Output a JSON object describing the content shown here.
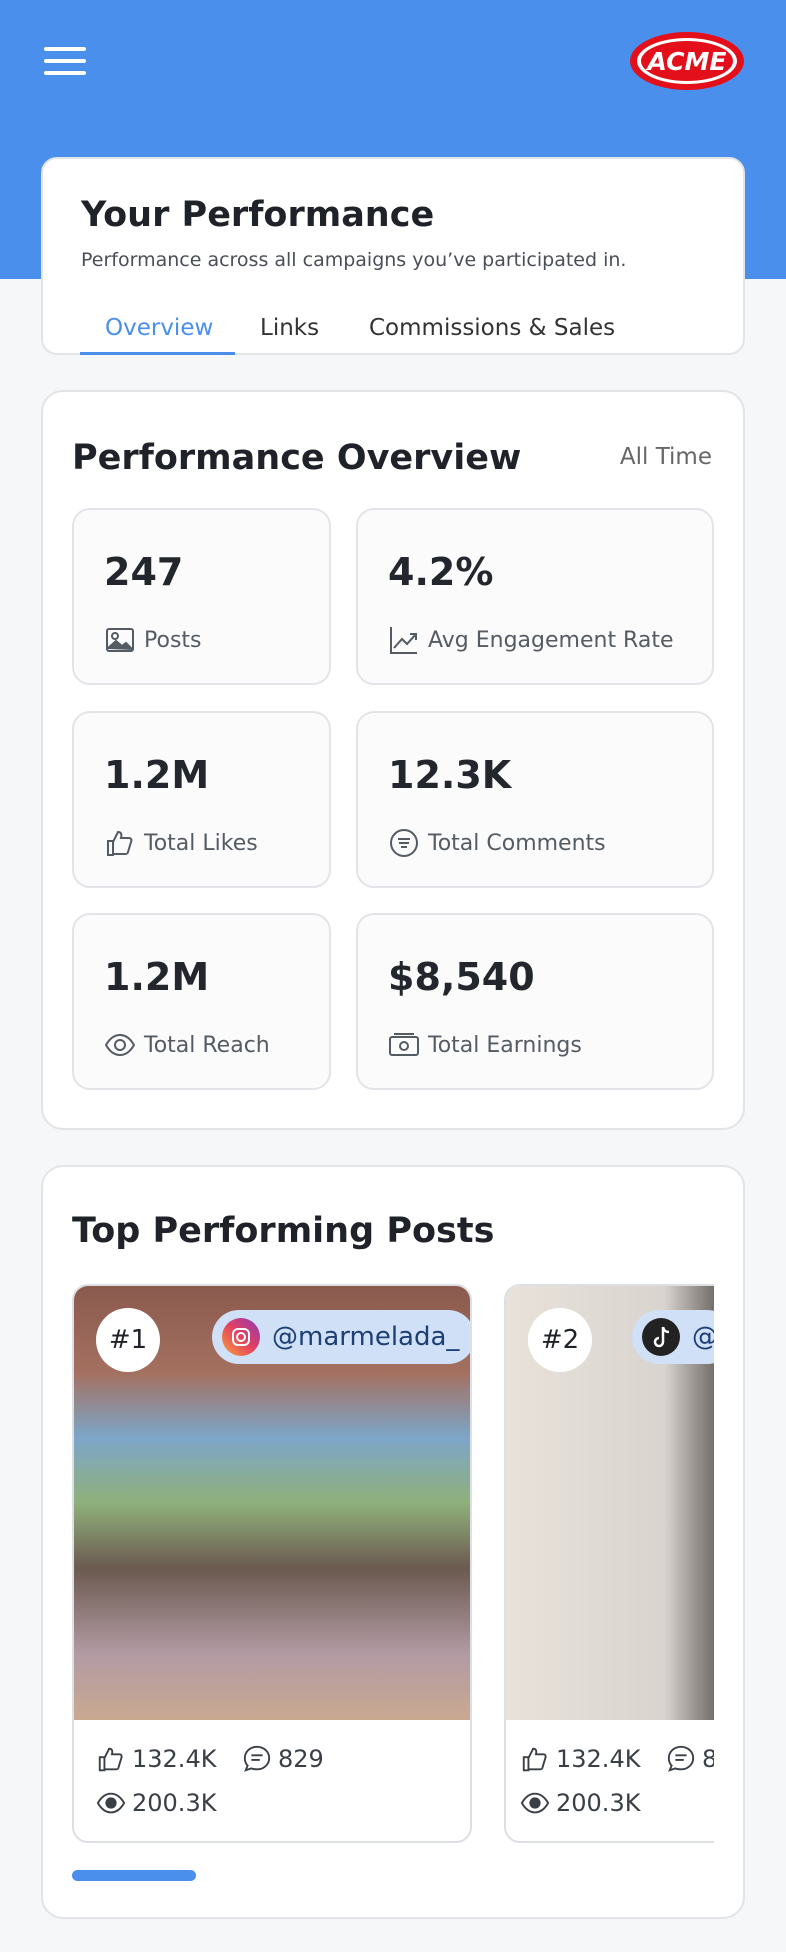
{
  "header": {
    "logo": "ACME"
  },
  "intro": {
    "title": "Your Performance",
    "subtitle": "Performance across all campaigns you’ve participated in.",
    "tabs": [
      "Overview",
      "Links",
      "Commissions & Sales"
    ]
  },
  "performance": {
    "title": "Performance Overview",
    "period": "All Time",
    "stats": [
      {
        "value": "247",
        "label": "Posts"
      },
      {
        "value": "4.2%",
        "label": "Avg Engagement Rate"
      },
      {
        "value": "1.2M",
        "label": "Total Likes"
      },
      {
        "value": "12.3K",
        "label": "Total Comments"
      },
      {
        "value": "1.2M",
        "label": "Total Reach"
      },
      {
        "value": "$8,540",
        "label": "Total Earnings"
      }
    ]
  },
  "top_posts": {
    "title": "Top Performing Posts",
    "posts": [
      {
        "rank": "#1",
        "handle": "@marmelada_",
        "likes": "132.4K",
        "comments": "829",
        "views": "200.3K"
      },
      {
        "rank": "#2",
        "handle": "@",
        "likes": "132.4K",
        "comments": "8",
        "views": "200.3K"
      }
    ]
  }
}
